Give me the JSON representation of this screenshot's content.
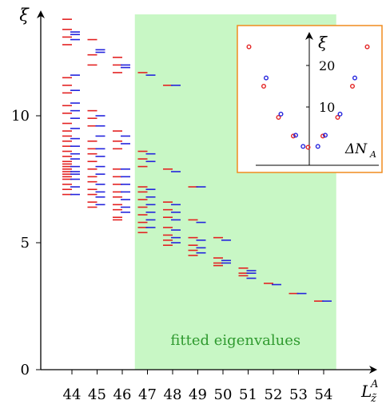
{
  "chart_data": [
    {
      "type": "scatter",
      "title": "",
      "ylabel": "ξ",
      "xlabel_main": "L",
      "xlabel_sup": "A",
      "xlabel_sub": "z̃",
      "xlim": [
        43.2,
        55.3
      ],
      "ylim": [
        0,
        14
      ],
      "x_ticks": [
        44,
        45,
        46,
        47,
        48,
        49,
        50,
        51,
        52,
        53,
        54
      ],
      "y_ticks": [
        0,
        5,
        10
      ],
      "shaded_region": {
        "x_start": 46.5,
        "x_end": 54.5,
        "label": "fitted eigenvalues",
        "color": "#c8f7c5"
      },
      "series": [
        {
          "color": "#e32222",
          "points": [
            [
              44,
              13.8
            ],
            [
              44,
              13.4
            ],
            [
              44,
              13.1
            ],
            [
              44,
              12.8
            ],
            [
              44,
              11.5
            ],
            [
              44,
              11.2
            ],
            [
              44,
              10.9
            ],
            [
              44,
              10.4
            ],
            [
              44,
              10.1
            ],
            [
              44,
              9.7
            ],
            [
              44,
              9.4
            ],
            [
              44,
              9.2
            ],
            [
              44,
              9.0
            ],
            [
              44,
              8.8
            ],
            [
              44,
              8.6
            ],
            [
              44,
              8.4
            ],
            [
              44,
              8.2
            ],
            [
              44,
              8.1
            ],
            [
              44,
              8.0
            ],
            [
              44,
              7.9
            ],
            [
              44,
              7.8
            ],
            [
              44,
              7.7
            ],
            [
              44,
              7.6
            ],
            [
              44,
              7.5
            ],
            [
              44,
              7.3
            ],
            [
              44,
              7.1
            ],
            [
              44,
              6.9
            ],
            [
              45,
              13.0
            ],
            [
              45,
              12.4
            ],
            [
              45,
              12.0
            ],
            [
              45,
              10.2
            ],
            [
              45,
              9.9
            ],
            [
              45,
              9.6
            ],
            [
              45,
              9.0
            ],
            [
              45,
              8.7
            ],
            [
              45,
              8.5
            ],
            [
              45,
              8.2
            ],
            [
              45,
              7.9
            ],
            [
              45,
              7.6
            ],
            [
              45,
              7.4
            ],
            [
              45,
              7.1
            ],
            [
              45,
              6.9
            ],
            [
              45,
              6.6
            ],
            [
              45,
              6.4
            ],
            [
              46,
              12.3
            ],
            [
              46,
              12.0
            ],
            [
              46,
              11.7
            ],
            [
              46,
              9.4
            ],
            [
              46,
              9.0
            ],
            [
              46,
              8.7
            ],
            [
              46,
              7.9
            ],
            [
              46,
              7.6
            ],
            [
              46,
              7.3
            ],
            [
              46,
              7.0
            ],
            [
              46,
              6.8
            ],
            [
              46,
              6.5
            ],
            [
              46,
              6.3
            ],
            [
              46,
              6.0
            ],
            [
              46,
              5.9
            ],
            [
              47,
              11.7
            ],
            [
              47,
              8.6
            ],
            [
              47,
              8.3
            ],
            [
              47,
              8.0
            ],
            [
              47,
              7.2
            ],
            [
              47,
              7.0
            ],
            [
              47,
              6.7
            ],
            [
              47,
              6.4
            ],
            [
              47,
              6.1
            ],
            [
              47,
              5.8
            ],
            [
              47,
              5.6
            ],
            [
              47,
              5.4
            ],
            [
              48,
              11.2
            ],
            [
              48,
              7.9
            ],
            [
              48,
              6.6
            ],
            [
              48,
              6.3
            ],
            [
              48,
              6.0
            ],
            [
              48,
              5.6
            ],
            [
              48,
              5.3
            ],
            [
              48,
              5.1
            ],
            [
              48,
              4.9
            ],
            [
              49,
              7.2
            ],
            [
              49,
              5.9
            ],
            [
              49,
              5.2
            ],
            [
              49,
              4.9
            ],
            [
              49,
              4.7
            ],
            [
              49,
              4.5
            ],
            [
              50,
              5.2
            ],
            [
              50,
              4.4
            ],
            [
              50,
              4.2
            ],
            [
              50,
              4.1
            ],
            [
              51,
              4.0
            ],
            [
              51,
              3.8
            ],
            [
              51,
              3.7
            ],
            [
              52,
              3.4
            ],
            [
              53,
              3.0
            ],
            [
              54,
              2.7
            ]
          ]
        },
        {
          "color": "#2424dd",
          "points": [
            [
              44,
              13.3
            ],
            [
              44,
              13.2
            ],
            [
              44,
              13.0
            ],
            [
              44,
              11.6
            ],
            [
              44,
              11.0
            ],
            [
              44,
              10.5
            ],
            [
              44,
              10.2
            ],
            [
              44,
              9.9
            ],
            [
              44,
              9.5
            ],
            [
              44,
              9.1
            ],
            [
              44,
              8.8
            ],
            [
              44,
              8.5
            ],
            [
              44,
              8.3
            ],
            [
              44,
              8.0
            ],
            [
              44,
              7.8
            ],
            [
              44,
              7.7
            ],
            [
              44,
              7.5
            ],
            [
              44,
              7.2
            ],
            [
              44,
              6.9
            ],
            [
              45,
              12.6
            ],
            [
              45,
              12.5
            ],
            [
              45,
              10.0
            ],
            [
              45,
              9.6
            ],
            [
              45,
              9.2
            ],
            [
              45,
              8.7
            ],
            [
              45,
              8.4
            ],
            [
              45,
              8.0
            ],
            [
              45,
              7.7
            ],
            [
              45,
              7.3
            ],
            [
              45,
              7.0
            ],
            [
              45,
              6.8
            ],
            [
              45,
              6.5
            ],
            [
              46,
              12.0
            ],
            [
              46,
              11.9
            ],
            [
              46,
              9.2
            ],
            [
              46,
              8.9
            ],
            [
              46,
              7.9
            ],
            [
              46,
              7.6
            ],
            [
              46,
              7.3
            ],
            [
              46,
              7.0
            ],
            [
              46,
              6.7
            ],
            [
              46,
              6.4
            ],
            [
              46,
              6.2
            ],
            [
              47,
              11.6
            ],
            [
              47,
              8.5
            ],
            [
              47,
              8.2
            ],
            [
              47,
              7.1
            ],
            [
              47,
              6.8
            ],
            [
              47,
              6.5
            ],
            [
              47,
              6.2
            ],
            [
              47,
              5.9
            ],
            [
              47,
              5.6
            ],
            [
              48,
              11.2
            ],
            [
              48,
              7.8
            ],
            [
              48,
              6.5
            ],
            [
              48,
              6.2
            ],
            [
              48,
              5.9
            ],
            [
              48,
              5.5
            ],
            [
              48,
              5.2
            ],
            [
              48,
              5.0
            ],
            [
              49,
              7.2
            ],
            [
              49,
              5.8
            ],
            [
              49,
              5.1
            ],
            [
              49,
              4.8
            ],
            [
              49,
              4.6
            ],
            [
              50,
              5.1
            ],
            [
              50,
              4.3
            ],
            [
              50,
              4.2
            ],
            [
              51,
              3.9
            ],
            [
              51,
              3.8
            ],
            [
              51,
              3.6
            ],
            [
              52,
              3.35
            ],
            [
              53,
              3.0
            ],
            [
              54,
              2.7
            ]
          ]
        }
      ]
    },
    {
      "type": "scatter",
      "ylabel": "ξ",
      "xlabel": "ΔN",
      "xlabel_sub": "A",
      "y_ticks": [
        10,
        20
      ],
      "xlim": [
        -4.6,
        4.6
      ],
      "ylim": [
        -2,
        27
      ],
      "inset_border_color": "#f08c1e",
      "series": [
        {
          "color": "#e32222",
          "points": [
            [
              -4,
              24.5
            ],
            [
              -3,
              15.0
            ],
            [
              -2,
              7.5
            ],
            [
              -1,
              3.0
            ],
            [
              0,
              0.3
            ],
            [
              1,
              3.0
            ],
            [
              2,
              7.5
            ],
            [
              3,
              15.0
            ],
            [
              4,
              24.5
            ]
          ]
        },
        {
          "color": "#2424dd",
          "points": [
            [
              -3,
              17.0
            ],
            [
              -2,
              8.3
            ],
            [
              -1,
              3.2
            ],
            [
              -0.5,
              0.5
            ],
            [
              0.5,
              0.5
            ],
            [
              1,
              3.2
            ],
            [
              2,
              8.3
            ],
            [
              3,
              17.0
            ]
          ]
        }
      ]
    }
  ]
}
